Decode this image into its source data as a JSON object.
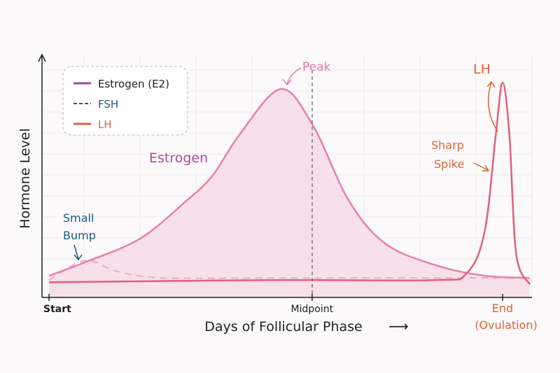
{
  "chart_data": {
    "type": "line",
    "title": "",
    "xlabel": "Days of Follicular Phase",
    "xlabel_arrow": "⟶",
    "ylabel": "Hormone Level",
    "xlim": [
      0,
      106
    ],
    "ylim": [
      0,
      105
    ],
    "grid": true,
    "legend_placement": "top-left",
    "x_ticks": [
      {
        "label": "Start",
        "x": 0
      },
      {
        "label": "Midpoint",
        "x": 58
      },
      {
        "label": "End",
        "sublabel": "(Ovulation)",
        "x": 100
      }
    ],
    "series": [
      {
        "name": "Estrogen (E2)",
        "legend_color": "#a3449c",
        "line_color": "#e67fae",
        "style": "solid",
        "fill": true,
        "x": [
          0,
          7.7,
          20,
          30,
          36,
          42,
          51,
          58,
          66,
          74,
          85,
          96,
          106
        ],
        "y": [
          10,
          16,
          27,
          44,
          56,
          75,
          96,
          80,
          45,
          25,
          15,
          10,
          9
        ]
      },
      {
        "name": "FSH",
        "legend_color": "#1f5a80",
        "line_color": "#eeaac6",
        "style": "dashed",
        "fill": false,
        "x": [
          0,
          8,
          15,
          25,
          50,
          80,
          106
        ],
        "y": [
          8,
          17,
          12,
          9,
          9,
          9,
          9
        ]
      },
      {
        "name": "LH",
        "legend_color": "#d9653a",
        "line_color": "#e0607e",
        "style": "solid",
        "fill": false,
        "x": [
          0,
          50,
          85,
          92,
          96,
          98.5,
          100,
          101.5,
          103,
          106
        ],
        "y": [
          7,
          8,
          8,
          11,
          30,
          75,
          99,
          75,
          20,
          6
        ]
      }
    ],
    "annotations": [
      {
        "text": "Peak",
        "color": "#e07ab0"
      },
      {
        "text": "Estrogen",
        "color": "#b4489c"
      },
      {
        "text": "Small",
        "text2": "Bump",
        "color": "#1f5a80"
      },
      {
        "text": "LH",
        "color": "#d9653a"
      },
      {
        "text": "Sharp",
        "text2": "Spike",
        "color": "#d9653a"
      }
    ]
  }
}
